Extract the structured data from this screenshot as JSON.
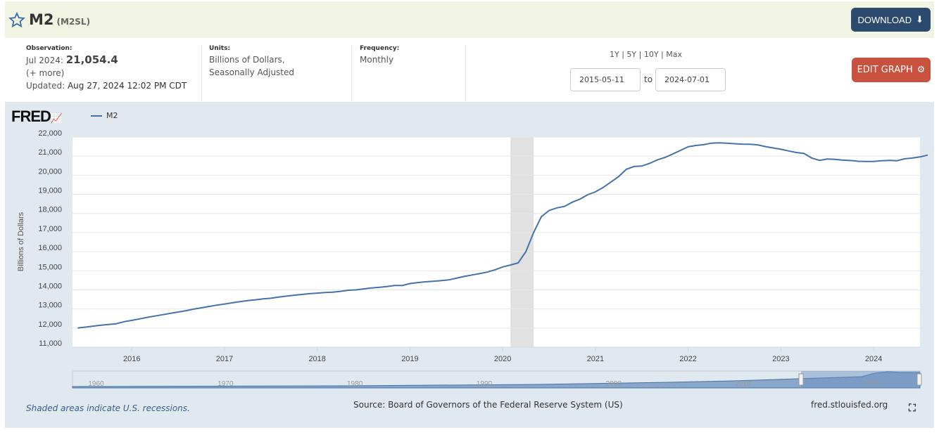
{
  "header": {
    "title": "M2",
    "series_id": "(M2SL)",
    "download_label": "DOWNLOAD"
  },
  "info": {
    "observation_label": "Observation:",
    "observation_date": "Jul 2024:",
    "observation_value": "21,054.4",
    "more": "(+ more)",
    "updated_label": "Updated:",
    "updated_value": "Aug 27, 2024 12:02 PM CDT",
    "units_label": "Units:",
    "units_line1": "Billions of Dollars,",
    "units_line2": "Seasonally Adjusted",
    "frequency_label": "Frequency:",
    "frequency_value": "Monthly"
  },
  "controls": {
    "ranges": [
      "1Y",
      "5Y",
      "10Y",
      "Max"
    ],
    "start_date": "2015-05-11",
    "to": "to",
    "end_date": "2024-07-01",
    "edit_label": "EDIT GRAPH"
  },
  "graph": {
    "logo": "FRED",
    "legend": "M2",
    "footnote": "Shaded areas indicate U.S. recessions.",
    "source": "Source: Board of Governors of the Federal Reserve System (US)",
    "site": "fred.stlouisfed.org",
    "navigator_labels": [
      "1960",
      "1970",
      "1980",
      "1990",
      "2000",
      "2010",
      "2020"
    ]
  },
  "colors": {
    "line": "#4572a7",
    "recession": "#e1e1e1",
    "header_bg": "#f1f4e2",
    "download": "#2c4a6e",
    "edit": "#c8523d"
  },
  "chart_data": {
    "type": "line",
    "title": "",
    "xlabel": "",
    "ylabel": "Billions of Dollars",
    "ylim": [
      11000,
      22000
    ],
    "yticks": [
      "11,000",
      "12,000",
      "13,000",
      "14,000",
      "15,000",
      "16,000",
      "17,000",
      "18,000",
      "19,000",
      "20,000",
      "21,000",
      "22,000"
    ],
    "xticks": [
      "2016",
      "2017",
      "2018",
      "2019",
      "2020",
      "2021",
      "2022",
      "2023",
      "2024"
    ],
    "xlim": [
      "2015-05-11",
      "2024-07-01"
    ],
    "recessions": [
      [
        "2020-02",
        "2020-04"
      ]
    ],
    "series": [
      {
        "name": "M2",
        "start": "2015-06",
        "frequency": "monthly",
        "values": [
          12000,
          12050,
          12100,
          12150,
          12190,
          12230,
          12330,
          12400,
          12480,
          12560,
          12630,
          12700,
          12770,
          12840,
          12910,
          12990,
          13060,
          13130,
          13200,
          13260,
          13320,
          13380,
          13440,
          13480,
          13530,
          13560,
          13620,
          13670,
          13720,
          13760,
          13800,
          13830,
          13860,
          13880,
          13920,
          13980,
          14000,
          14050,
          14100,
          14130,
          14170,
          14230,
          14230,
          14330,
          14380,
          14420,
          14450,
          14480,
          14520,
          14610,
          14700,
          14780,
          14850,
          14930,
          15050,
          15200,
          15300,
          15410,
          16000,
          17000,
          17830,
          18150,
          18290,
          18370,
          18590,
          18750,
          18980,
          19130,
          19360,
          19640,
          19930,
          20310,
          20460,
          20480,
          20620,
          20800,
          20930,
          21110,
          21300,
          21490,
          21560,
          21600,
          21680,
          21700,
          21680,
          21650,
          21630,
          21620,
          21590,
          21500,
          21430,
          21360,
          21270,
          21190,
          21140,
          20900,
          20780,
          20850,
          20830,
          20790,
          20770,
          20730,
          20720,
          20720,
          20760,
          20780,
          20760,
          20860,
          20900,
          20960,
          21054.4
        ]
      }
    ]
  }
}
